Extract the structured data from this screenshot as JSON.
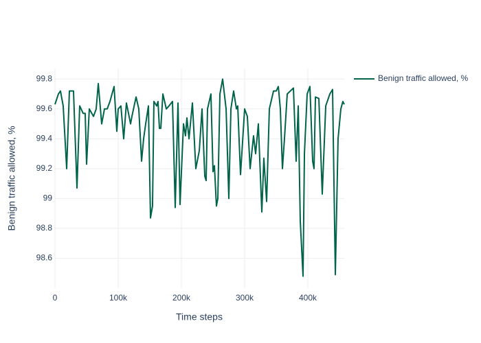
{
  "chart_data": {
    "type": "line",
    "x_label": "Time steps",
    "y_label": "Benign traffic allowed, %",
    "x": [
      0,
      5400,
      8700,
      13000,
      18500,
      22800,
      29300,
      34800,
      39100,
      44600,
      47800,
      50000,
      54300,
      60900,
      65200,
      68500,
      73900,
      78300,
      82600,
      87000,
      93500,
      97800,
      100000,
      104300,
      108700,
      113000,
      119600,
      121700,
      128300,
      132600,
      137000,
      140200,
      143500,
      147800,
      151100,
      154300,
      156500,
      160900,
      163000,
      165200,
      167400,
      170700,
      176100,
      180400,
      185900,
      190200,
      194600,
      197800,
      203300,
      206500,
      208700,
      212000,
      217400,
      222800,
      228300,
      232600,
      237000,
      239100,
      241300,
      246700,
      250000,
      252200,
      255400,
      257600,
      260900,
      265200,
      270700,
      275000,
      278300,
      282600,
      287000,
      289100,
      293500,
      300000,
      304300,
      308700,
      314100,
      317400,
      321700,
      327200,
      330400,
      334800,
      339100,
      345700,
      350000,
      353300,
      356500,
      359800,
      363000,
      367400,
      377200,
      381500,
      384800,
      388000,
      392400,
      394600,
      398900,
      403300,
      407600,
      409800,
      412000,
      417400,
      422800,
      428300,
      434800,
      439100,
      443500,
      447800,
      452200,
      455400,
      457600
    ],
    "series": [
      {
        "name": "Benign traffic allowed, %",
        "color": "#00634a",
        "values": [
          99.63,
          99.7,
          99.72,
          99.62,
          99.2,
          99.72,
          99.72,
          99.07,
          99.62,
          99.57,
          99.57,
          99.23,
          99.6,
          99.55,
          99.6,
          99.77,
          99.5,
          99.6,
          99.6,
          99.65,
          99.75,
          99.45,
          99.6,
          99.62,
          99.4,
          99.64,
          99.5,
          99.55,
          99.68,
          99.6,
          99.25,
          99.4,
          99.5,
          99.62,
          98.87,
          98.95,
          99.65,
          99.62,
          99.65,
          99.47,
          99.47,
          99.7,
          99.6,
          99.62,
          99.65,
          98.94,
          99.64,
          98.96,
          99.5,
          99.42,
          99.54,
          99.4,
          99.64,
          99.2,
          99.32,
          99.6,
          99.15,
          99.12,
          99.6,
          99.7,
          99.18,
          99.22,
          98.95,
          99.0,
          99.7,
          99.8,
          99.6,
          99.0,
          99.6,
          99.72,
          99.6,
          99.62,
          99.16,
          99.6,
          99.55,
          99.2,
          99.42,
          99.3,
          99.5,
          98.91,
          99.27,
          98.98,
          99.6,
          99.72,
          99.72,
          99.75,
          99.6,
          99.2,
          99.4,
          99.7,
          99.74,
          99.25,
          99.62,
          98.85,
          98.48,
          99.3,
          99.7,
          99.75,
          99.25,
          99.2,
          99.68,
          99.67,
          99.03,
          99.62,
          99.7,
          99.73,
          98.49,
          99.4,
          99.6,
          99.65,
          99.63
        ]
      }
    ],
    "xlim": [
      0,
      457600
    ],
    "ylim": [
      98.4,
      99.87
    ],
    "xticks": [
      0,
      {
        "value": 100000,
        "label": "100k"
      },
      {
        "value": 200000,
        "label": "200k"
      },
      {
        "value": 300000,
        "label": "300k"
      },
      {
        "value": 400000,
        "label": "400k"
      }
    ],
    "yticks": [
      98.6,
      98.8,
      99,
      99.2,
      99.4,
      99.6,
      99.8
    ],
    "grid": true,
    "legend": "right"
  }
}
